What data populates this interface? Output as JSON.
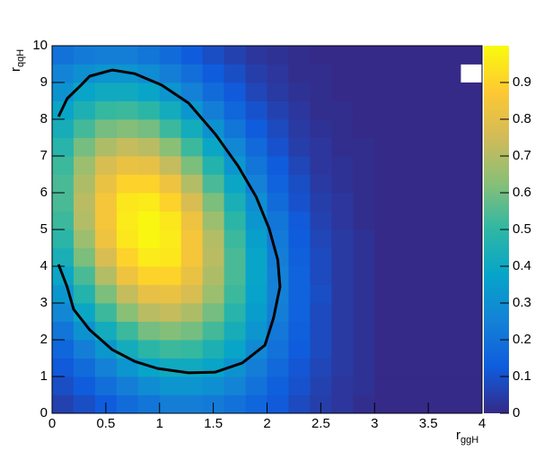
{
  "chart_data": {
    "type": "heatmap",
    "xlabel": "r",
    "xlabel_sub": "ggH",
    "ylabel": "r",
    "ylabel_sub": "qqH",
    "xedges": [
      0,
      0.2,
      0.4,
      0.6,
      0.8,
      1,
      1.2,
      1.4,
      1.6,
      1.8,
      2,
      2.2,
      2.4,
      2.6,
      2.8,
      3,
      3.2,
      3.4,
      3.6,
      3.8,
      4
    ],
    "yedges": [
      0,
      0.5,
      1,
      1.5,
      2,
      2.5,
      3,
      3.5,
      4,
      4.5,
      5,
      5.5,
      6,
      6.5,
      7,
      7.5,
      8,
      8.5,
      9,
      9.5,
      10
    ],
    "z": [
      [
        0.06,
        0.09,
        0.13,
        0.18,
        0.21,
        0.24,
        0.24,
        0.23,
        0.2,
        0.16,
        0.12,
        0.08,
        0.05,
        0.03,
        0.01,
        0,
        0,
        0,
        0,
        0
      ],
      [
        0.09,
        0.13,
        0.19,
        0.24,
        0.29,
        0.32,
        0.32,
        0.3,
        0.26,
        0.2,
        0.14,
        0.1,
        0.06,
        0.03,
        0.02,
        0,
        0,
        0,
        0,
        0
      ],
      [
        0.12,
        0.18,
        0.25,
        0.32,
        0.38,
        0.41,
        0.41,
        0.38,
        0.31,
        0.24,
        0.17,
        0.11,
        0.07,
        0.04,
        0.02,
        0,
        0,
        0,
        0,
        0
      ],
      [
        0.16,
        0.24,
        0.33,
        0.42,
        0.49,
        0.52,
        0.51,
        0.45,
        0.38,
        0.28,
        0.2,
        0.13,
        0.08,
        0.04,
        0.02,
        0,
        0,
        0,
        0,
        0
      ],
      [
        0.21,
        0.31,
        0.42,
        0.52,
        0.6,
        0.62,
        0.6,
        0.53,
        0.43,
        0.32,
        0.22,
        0.14,
        0.08,
        0.04,
        0.02,
        0,
        0,
        0,
        0,
        0
      ],
      [
        0.27,
        0.39,
        0.52,
        0.63,
        0.71,
        0.73,
        0.69,
        0.6,
        0.48,
        0.35,
        0.24,
        0.15,
        0.08,
        0.04,
        0.02,
        0,
        0,
        0,
        0,
        0
      ],
      [
        0.33,
        0.47,
        0.61,
        0.73,
        0.81,
        0.82,
        0.77,
        0.66,
        0.52,
        0.37,
        0.25,
        0.15,
        0.09,
        0.04,
        0.02,
        0,
        0,
        0,
        0,
        0
      ],
      [
        0.39,
        0.54,
        0.7,
        0.83,
        0.9,
        0.9,
        0.82,
        0.69,
        0.54,
        0.38,
        0.25,
        0.15,
        0.08,
        0.04,
        0.02,
        0,
        0,
        0,
        0,
        0
      ],
      [
        0.44,
        0.61,
        0.77,
        0.9,
        0.96,
        0.95,
        0.85,
        0.71,
        0.54,
        0.38,
        0.24,
        0.14,
        0.08,
        0.04,
        0.02,
        0,
        0,
        0,
        0,
        0
      ],
      [
        0.49,
        0.66,
        0.83,
        0.95,
        0.99,
        0.96,
        0.85,
        0.7,
        0.52,
        0.36,
        0.23,
        0.13,
        0.07,
        0.04,
        0.02,
        0,
        0,
        0,
        0,
        0
      ],
      [
        0.52,
        0.7,
        0.85,
        0.96,
        0.99,
        0.95,
        0.83,
        0.66,
        0.49,
        0.33,
        0.21,
        0.12,
        0.06,
        0.03,
        0.01,
        0,
        0,
        0,
        0,
        0
      ],
      [
        0.54,
        0.71,
        0.85,
        0.95,
        0.96,
        0.9,
        0.77,
        0.61,
        0.44,
        0.3,
        0.18,
        0.1,
        0.05,
        0.03,
        0.01,
        0,
        0,
        0,
        0,
        0
      ],
      [
        0.54,
        0.69,
        0.82,
        0.9,
        0.9,
        0.83,
        0.7,
        0.54,
        0.39,
        0.25,
        0.15,
        0.09,
        0.04,
        0.02,
        0.01,
        0,
        0,
        0,
        0,
        0
      ],
      [
        0.52,
        0.66,
        0.77,
        0.82,
        0.81,
        0.73,
        0.61,
        0.47,
        0.33,
        0.21,
        0.13,
        0.07,
        0.03,
        0.02,
        0.01,
        0,
        0,
        0,
        0,
        0
      ],
      [
        0.48,
        0.6,
        0.69,
        0.73,
        0.71,
        0.63,
        0.52,
        0.39,
        0.27,
        0.17,
        0.1,
        0.05,
        0.03,
        0.01,
        0.01,
        0,
        0,
        0,
        0,
        0
      ],
      [
        0.43,
        0.53,
        0.6,
        0.62,
        0.6,
        0.52,
        0.42,
        0.31,
        0.21,
        0.13,
        0.08,
        0.04,
        0.02,
        0.01,
        0,
        0,
        0,
        0,
        0,
        0
      ],
      [
        0.38,
        0.45,
        0.51,
        0.52,
        0.49,
        0.42,
        0.33,
        0.24,
        0.16,
        0.1,
        0.06,
        0.03,
        0.01,
        0.01,
        0,
        0,
        0,
        0,
        0,
        0
      ],
      [
        0.31,
        0.38,
        0.41,
        0.41,
        0.38,
        0.32,
        0.25,
        0.18,
        0.12,
        0.07,
        0.04,
        0.02,
        0.01,
        0,
        0,
        0,
        0,
        0,
        0,
        0
      ],
      [
        0.26,
        0.3,
        0.32,
        0.32,
        0.29,
        0.24,
        0.19,
        0.13,
        0.09,
        0.05,
        0.03,
        0.01,
        0.01,
        0,
        0,
        0,
        0,
        0,
        0,
        null
      ],
      [
        0.2,
        0.23,
        0.24,
        0.24,
        0.21,
        0.18,
        0.13,
        0.09,
        0.06,
        0.03,
        0.02,
        0.01,
        0,
        0,
        0,
        0,
        0,
        0,
        0,
        0
      ]
    ],
    "colors": [
      "#352a87",
      "#0f5cdd",
      "#1481d6",
      "#06a4ca",
      "#2eb7a4",
      "#87bf77",
      "#d1bb59",
      "#fec832",
      "#f9fb0e"
    ],
    "contour": {
      "color": "#000000",
      "x": [
        0.06,
        0.14,
        0.2,
        0.35,
        0.56,
        0.77,
        0.98,
        1.27,
        1.52,
        1.77,
        1.98,
        2.06,
        2.12,
        2.1,
        2.02,
        1.9,
        1.73,
        1.52,
        1.27,
        1.02,
        0.77,
        0.56,
        0.35,
        0.27,
        0.14,
        0.06
      ],
      "y": [
        4.05,
        3.44,
        2.83,
        2.27,
        1.73,
        1.41,
        1.22,
        1.1,
        1.12,
        1.37,
        1.85,
        2.59,
        3.44,
        4.17,
        5.02,
        5.88,
        6.73,
        7.59,
        8.44,
        8.93,
        9.24,
        9.34,
        9.17,
        8.93,
        8.56,
        8.07
      ]
    },
    "xlim": [
      0,
      4
    ],
    "xticks": [
      0,
      0.5,
      1,
      1.5,
      2,
      2.5,
      3,
      3.5,
      4
    ],
    "ylim": [
      0,
      10
    ],
    "yticks": [
      0,
      1,
      2,
      3,
      4,
      5,
      6,
      7,
      8,
      9,
      10
    ],
    "zlim": [
      0,
      1
    ],
    "zticks": [
      0,
      0.1,
      0.2,
      0.3,
      0.4,
      0.5,
      0.6,
      0.7,
      0.8,
      0.9
    ]
  }
}
